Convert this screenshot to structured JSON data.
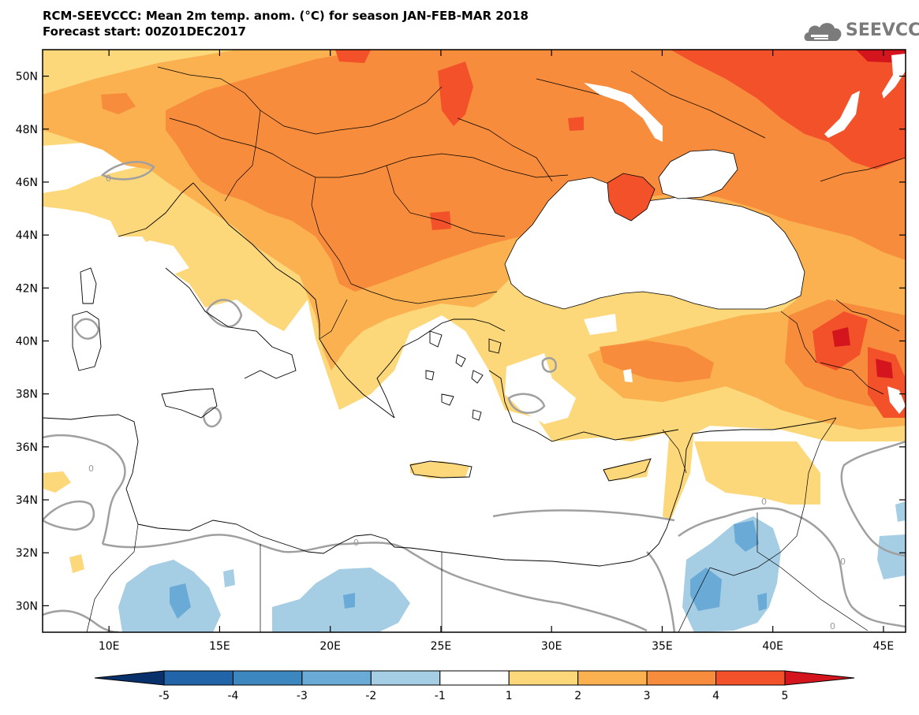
{
  "header": {
    "title": "RCM-SEEVCCC: Mean 2m temp. anom. (°C) for season JAN-FEB-MAR 2018",
    "subtitle": "Forecast start: 00Z01DEC2017",
    "logo_text": "SEEVCCC"
  },
  "axes": {
    "lon_ticks": [
      "10E",
      "15E",
      "20E",
      "25E",
      "30E",
      "35E",
      "40E",
      "45E"
    ],
    "lat_ticks": [
      "50N",
      "48N",
      "46N",
      "44N",
      "42N",
      "40N",
      "38N",
      "36N",
      "34N",
      "32N",
      "30N"
    ],
    "lon_range": [
      7,
      46
    ],
    "lat_range": [
      29,
      51
    ]
  },
  "colorbar": {
    "labels": [
      "-5",
      "-4",
      "-3",
      "-2",
      "-1",
      "1",
      "2",
      "3",
      "4",
      "5"
    ],
    "colors": [
      "#2164a8",
      "#3d87c1",
      "#6aaad6",
      "#a5cde4",
      "#ffffff",
      "#fdd87a",
      "#fbb150",
      "#f78c3c",
      "#f2512a"
    ],
    "extend_low": "#08306b",
    "extend_high": "#d4151e"
  },
  "contour_label": "0",
  "colors": {
    "land_line": "#000000",
    "contour": "#a0a0a0"
  }
}
